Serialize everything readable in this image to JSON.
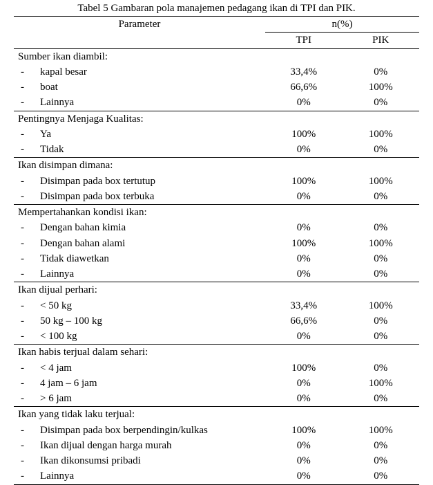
{
  "caption": "Tabel 5 Gambaran pola manajemen pedagang ikan di TPI dan PIK.",
  "headerParameter": "Parameter",
  "headerNPct": "n(%)",
  "colTPI": "TPI",
  "colPIK": "PIK",
  "sections": [
    {
      "label": "Sumber ikan diambil:",
      "items": [
        {
          "label": "kapal besar",
          "tpi": "33,4%",
          "pik": "0%"
        },
        {
          "label": "boat",
          "tpi": "66,6%",
          "pik": "100%"
        },
        {
          "label": "Lainnya",
          "tpi": "0%",
          "pik": "0%"
        }
      ]
    },
    {
      "label": "Pentingnya Menjaga Kualitas:",
      "items": [
        {
          "label": "Ya",
          "tpi": "100%",
          "pik": "100%"
        },
        {
          "label": "Tidak",
          "tpi": "0%",
          "pik": "0%"
        }
      ]
    },
    {
      "label": "Ikan disimpan dimana:",
      "items": [
        {
          "label": "Disimpan pada box tertutup",
          "tpi": "100%",
          "pik": "100%"
        },
        {
          "label": "Disimpan pada box terbuka",
          "tpi": "0%",
          "pik": "0%"
        }
      ]
    },
    {
      "label": "Mempertahankan kondisi ikan:",
      "items": [
        {
          "label": "Dengan bahan kimia",
          "tpi": "0%",
          "pik": "0%"
        },
        {
          "label": "Dengan bahan alami",
          "tpi": "100%",
          "pik": "100%"
        },
        {
          "label": "Tidak diawetkan",
          "tpi": "0%",
          "pik": "0%"
        },
        {
          "label": "Lainnya",
          "tpi": "0%",
          "pik": "0%"
        }
      ]
    },
    {
      "label": "Ikan dijual perhari:",
      "items": [
        {
          "label": "< 50 kg",
          "tpi": "33,4%",
          "pik": "100%"
        },
        {
          "label": "50 kg – 100 kg",
          "tpi": "66,6%",
          "pik": "0%"
        },
        {
          "label": "< 100 kg",
          "tpi": "0%",
          "pik": "0%"
        }
      ]
    },
    {
      "label": "Ikan habis terjual dalam sehari:",
      "items": [
        {
          "label": "< 4 jam",
          "tpi": "100%",
          "pik": "0%"
        },
        {
          "label": "4 jam – 6 jam",
          "tpi": "0%",
          "pik": "100%"
        },
        {
          "label": "> 6 jam",
          "tpi": "0%",
          "pik": "0%"
        }
      ]
    },
    {
      "label": "Ikan yang tidak laku terjual:",
      "items": [
        {
          "label": "Disimpan pada box berpendingin/kulkas",
          "tpi": "100%",
          "pik": "100%"
        },
        {
          "label": "Ikan dijual dengan harga murah",
          "tpi": "0%",
          "pik": "0%"
        },
        {
          "label": "Ikan dikonsumsi pribadi",
          "tpi": "0%",
          "pik": "0%"
        },
        {
          "label": "Lainnya",
          "tpi": "0%",
          "pik": "0%"
        }
      ]
    }
  ]
}
